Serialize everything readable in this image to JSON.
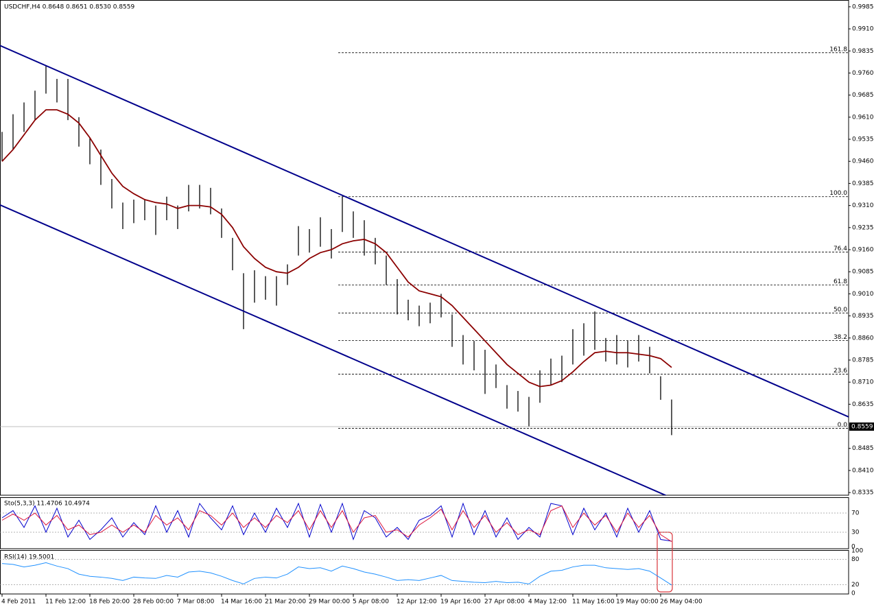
{
  "chart_data": [
    {
      "type": "ohlc",
      "title": "USDCHF,H4  0.8648 0.8651 0.8530 0.8559",
      "categories": [
        "4 Feb 2011",
        null,
        null,
        null,
        "11 Feb 12:00",
        null,
        null,
        null,
        "18 Feb 20:00",
        null,
        null,
        null,
        "28 Feb 00:00",
        null,
        null,
        null,
        "7 Mar 08:00",
        null,
        null,
        null,
        "14 Mar 16:00",
        null,
        null,
        null,
        "21 Mar 20:00",
        null,
        null,
        null,
        "29 Mar 00:00",
        null,
        null,
        null,
        "5 Apr 08:00",
        null,
        null,
        null,
        "12 Apr 12:00",
        null,
        null,
        null,
        "19 Apr 16:00",
        null,
        null,
        null,
        "27 Apr 08:00",
        null,
        null,
        null,
        "4 May 12:00",
        null,
        null,
        null,
        "11 May 16:00",
        null,
        null,
        null,
        "19 May 00:00",
        null,
        null,
        null,
        "26 May 04:00",
        null,
        null,
        null,
        null,
        null,
        null,
        null,
        null,
        null,
        null,
        null,
        null,
        null,
        null,
        null,
        null,
        null
      ],
      "highs": [
        0.956,
        0.962,
        0.966,
        0.97,
        0.9785,
        0.974,
        0.974,
        0.961,
        0.954,
        0.95,
        0.94,
        0.932,
        0.933,
        0.933,
        0.931,
        0.934,
        0.931,
        0.938,
        0.938,
        0.937,
        0.93,
        0.92,
        0.908,
        0.909,
        0.907,
        0.907,
        0.911,
        0.924,
        0.923,
        0.927,
        0.923,
        0.934,
        0.929,
        0.926,
        0.92,
        0.914,
        0.906,
        0.899,
        0.897,
        0.898,
        0.901,
        0.894,
        0.887,
        0.885,
        0.882,
        0.877,
        0.87,
        0.868,
        0.866,
        0.875,
        0.879,
        0.88,
        0.889,
        0.891,
        0.895,
        0.886,
        0.887,
        0.885,
        0.887,
        0.883,
        0.873,
        0.8651,
        null,
        null,
        null,
        null,
        null,
        null,
        null,
        null,
        null,
        null,
        null,
        null,
        null,
        null,
        null,
        null
      ],
      "lows": [
        0.946,
        0.95,
        0.956,
        0.96,
        0.969,
        0.966,
        0.96,
        0.951,
        0.945,
        0.938,
        0.93,
        0.923,
        0.925,
        0.926,
        0.921,
        0.926,
        0.923,
        0.929,
        0.93,
        0.928,
        0.92,
        0.909,
        0.889,
        0.898,
        0.899,
        0.897,
        0.904,
        0.914,
        0.915,
        0.917,
        0.913,
        0.922,
        0.92,
        0.914,
        0.911,
        0.904,
        0.894,
        0.892,
        0.89,
        0.891,
        0.893,
        0.883,
        0.877,
        0.875,
        0.867,
        0.869,
        0.862,
        0.861,
        0.856,
        0.864,
        0.87,
        0.871,
        0.877,
        0.88,
        0.882,
        0.878,
        0.877,
        0.876,
        0.878,
        0.874,
        0.865,
        0.853,
        null,
        null,
        null,
        null,
        null,
        null,
        null,
        null,
        null,
        null,
        null,
        null,
        null,
        null,
        null,
        null
      ],
      "ma": [
        0.946,
        0.95,
        0.955,
        0.96,
        0.9635,
        0.9635,
        0.962,
        0.959,
        0.954,
        0.948,
        0.942,
        0.9375,
        0.935,
        0.933,
        0.932,
        0.9315,
        0.93,
        0.931,
        0.931,
        0.9305,
        0.928,
        0.9235,
        0.917,
        0.913,
        0.91,
        0.9085,
        0.908,
        0.91,
        0.913,
        0.915,
        0.916,
        0.918,
        0.919,
        0.9195,
        0.918,
        0.915,
        0.91,
        0.905,
        0.902,
        0.901,
        0.9,
        0.897,
        0.893,
        0.889,
        0.885,
        0.881,
        0.877,
        0.874,
        0.871,
        0.8695,
        0.87,
        0.8715,
        0.8745,
        0.878,
        0.881,
        0.8815,
        0.881,
        0.881,
        0.8805,
        0.88,
        0.879,
        0.876,
        null,
        null,
        null,
        null,
        null,
        null,
        null,
        null,
        null,
        null,
        null,
        null,
        null,
        null,
        null,
        null
      ],
      "bar_color": "#000000",
      "ma_color": "#8b0000",
      "ylim": [
        0.8326,
        1.0008
      ],
      "yticks": [
        0.9985,
        {
          "value": 0.991,
          "label": "0.9910"
        },
        0.9835,
        {
          "value": 0.976,
          "label": "0.9760"
        },
        0.9685,
        {
          "value": 0.961,
          "label": "0.9610"
        },
        0.9535,
        {
          "value": 0.946,
          "label": "0.9460"
        },
        0.9385,
        {
          "value": 0.931,
          "label": "0.9310"
        },
        0.9235,
        {
          "value": 0.916,
          "label": "0.9160"
        },
        0.9085,
        {
          "value": 0.901,
          "label": "0.9010"
        },
        0.8935,
        {
          "value": 0.886,
          "label": "0.8860"
        },
        0.8785,
        {
          "value": 0.871,
          "label": "0.8710"
        },
        0.8635,
        0.8485,
        {
          "value": 0.841,
          "label": "0.8410"
        },
        0.8335
      ],
      "last_price": 0.8559,
      "fib_levels": [
        {
          "label": "161.8",
          "value": 0.9829
        },
        {
          "label": "100.0",
          "value": 0.934
        },
        {
          "label": "76.4",
          "value": 0.9152
        },
        {
          "label": "61.8",
          "value": 0.904
        },
        {
          "label": "50.0",
          "value": 0.8945
        },
        {
          "label": "38.2",
          "value": 0.8851
        },
        {
          "label": "23.6",
          "value": 0.8737
        },
        {
          "label": "0.0",
          "value": 0.8553
        }
      ],
      "channel_color": "#00008b",
      "channel_lines": [
        {
          "from": [
            4,
            0.9785
          ],
          "to": [
            77,
            0.8594
          ]
        },
        {
          "from": [
            0,
            0.9309
          ],
          "to": [
            60,
            0.8333
          ]
        }
      ]
    },
    {
      "type": "oscillator",
      "title": "Sto(5,3,3) 11.4706 10.4974",
      "ylim": [
        0,
        100
      ],
      "yticks": [
        0,
        30,
        70
      ],
      "lines": [
        {
          "color": "#0000cd",
          "values": [
            60,
            75,
            40,
            85,
            30,
            80,
            20,
            55,
            15,
            35,
            60,
            20,
            50,
            25,
            85,
            30,
            75,
            20,
            90,
            60,
            35,
            85,
            25,
            70,
            30,
            80,
            40,
            90,
            20,
            88,
            30,
            90,
            15,
            75,
            60,
            20,
            40,
            15,
            55,
            65,
            85,
            20,
            90,
            25,
            75,
            20,
            60,
            15,
            40,
            20,
            90,
            85,
            25,
            80,
            35,
            70,
            20,
            80,
            30,
            75,
            15,
            11.4706,
            null,
            null,
            null,
            null,
            null,
            null,
            null,
            null,
            null,
            null,
            null,
            null,
            null,
            null,
            null,
            null
          ]
        },
        {
          "color": "#dc143c",
          "values": [
            55,
            68,
            55,
            70,
            45,
            65,
            35,
            45,
            25,
            30,
            45,
            30,
            45,
            30,
            65,
            45,
            60,
            35,
            75,
            65,
            45,
            70,
            40,
            60,
            40,
            65,
            50,
            75,
            35,
            75,
            40,
            75,
            30,
            60,
            65,
            30,
            35,
            20,
            45,
            60,
            78,
            35,
            75,
            40,
            65,
            30,
            50,
            25,
            35,
            25,
            75,
            85,
            40,
            70,
            45,
            65,
            30,
            70,
            40,
            65,
            25,
            10.4974,
            null,
            null,
            null,
            null,
            null,
            null,
            null,
            null,
            null,
            null,
            null,
            null,
            null,
            null,
            null,
            null
          ]
        }
      ]
    },
    {
      "type": "oscillator",
      "title": "RSI(14) 19.5001",
      "ylim": [
        0,
        100
      ],
      "yticks": [
        0,
        20,
        80,
        100
      ],
      "lines": [
        {
          "color": "#1e90ff",
          "values": [
            70,
            68,
            62,
            66,
            72,
            64,
            58,
            45,
            40,
            38,
            35,
            30,
            38,
            36,
            35,
            42,
            38,
            50,
            52,
            48,
            40,
            30,
            22,
            35,
            38,
            36,
            45,
            62,
            58,
            60,
            52,
            64,
            58,
            50,
            45,
            38,
            30,
            32,
            30,
            36,
            42,
            30,
            28,
            26,
            25,
            28,
            25,
            26,
            22,
            40,
            52,
            54,
            62,
            66,
            66,
            60,
            58,
            56,
            58,
            52,
            36,
            19.5001,
            null,
            null,
            null,
            null,
            null,
            null,
            null,
            null,
            null,
            null,
            null,
            null,
            null,
            null,
            null,
            null
          ]
        }
      ]
    }
  ]
}
